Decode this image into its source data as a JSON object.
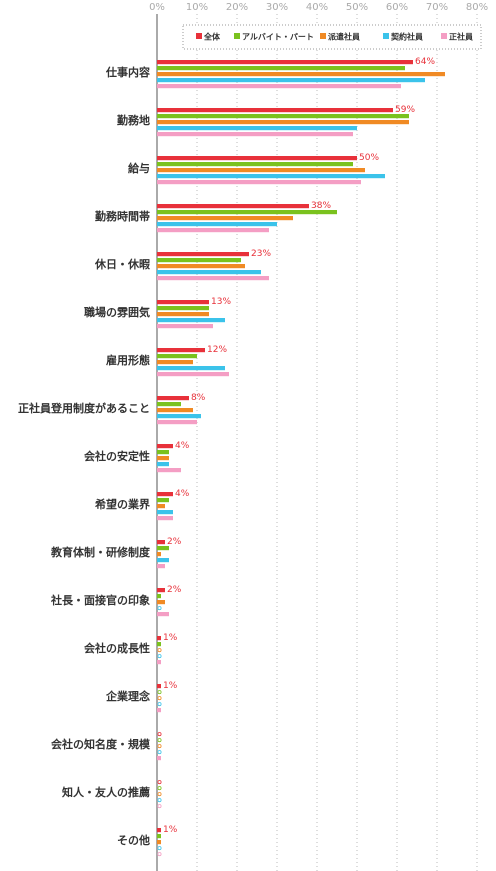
{
  "chart_data": {
    "type": "bar",
    "orientation": "horizontal",
    "xlim": [
      0,
      80
    ],
    "ticks": [
      "0%",
      "10%",
      "20%",
      "30%",
      "40%",
      "50%",
      "60%",
      "70%",
      "80%"
    ],
    "grid": true,
    "legend_position": "top-right",
    "categories": [
      "仕事内容",
      "勤務地",
      "給与",
      "勤務時間帯",
      "休日・休暇",
      "職場の雰囲気",
      "雇用形態",
      "正社員登用制度があること",
      "会社の安定性",
      "希望の業界",
      "教育体制・研修制度",
      "社長・面接官の印象",
      "会社の成長性",
      "企業理念",
      "会社の知名度・規模",
      "知人・友人の推薦",
      "その他"
    ],
    "series": [
      {
        "name": "全体",
        "color": "#e8313a",
        "values": [
          64,
          59,
          50,
          38,
          23,
          13,
          12,
          8,
          4,
          4,
          2,
          2,
          1,
          1,
          0,
          0,
          1
        ]
      },
      {
        "name": "アルバイト・パート",
        "color": "#7ac21e",
        "values": [
          62,
          63,
          49,
          45,
          21,
          13,
          10,
          6,
          3,
          3,
          3,
          1,
          1,
          0,
          0,
          0,
          1
        ]
      },
      {
        "name": "派遣社員",
        "color": "#f08a24",
        "values": [
          72,
          63,
          52,
          34,
          22,
          13,
          9,
          9,
          3,
          2,
          1,
          2,
          0,
          0,
          0,
          0,
          1
        ]
      },
      {
        "name": "契約社員",
        "color": "#3bc3ea",
        "values": [
          67,
          50,
          57,
          30,
          26,
          17,
          17,
          11,
          3,
          4,
          3,
          0,
          0,
          0,
          0,
          0,
          0
        ]
      },
      {
        "name": "正社員",
        "color": "#f49ec4",
        "values": [
          61,
          49,
          51,
          28,
          28,
          14,
          18,
          10,
          6,
          4,
          2,
          3,
          1,
          1,
          1,
          0,
          0
        ]
      }
    ],
    "data_labels": [
      "64%",
      "59%",
      "50%",
      "38%",
      "23%",
      "13%",
      "12%",
      "8%",
      "4%",
      "4%",
      "2%",
      "2%",
      "1%",
      "1%",
      "",
      "",
      "1%"
    ]
  }
}
